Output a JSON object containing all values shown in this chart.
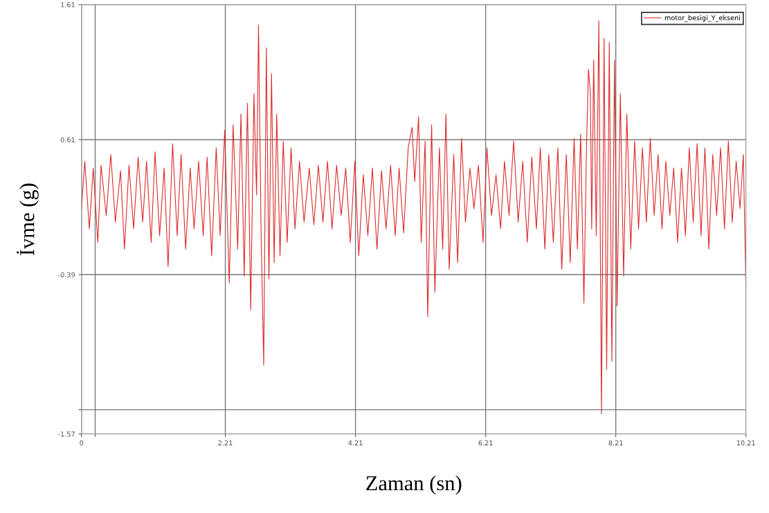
{
  "chart_data": {
    "type": "line",
    "xlabel": "Zaman (sn)",
    "ylabel": "İvme (g)",
    "xlim": [
      0,
      10.21
    ],
    "ylim": [
      -1.57,
      1.61
    ],
    "xticks": [
      0,
      {
        "value": 0.21,
        "label": null
      },
      2.21,
      4.21,
      6.21,
      8.21,
      10.21
    ],
    "yticks": [
      1.61,
      0.61,
      -0.39,
      {
        "value": -1.39,
        "label": null
      },
      -1.57
    ],
    "grid": true,
    "legend": "top right",
    "line_style": "solid",
    "marker": "none",
    "series": [
      {
        "name": "motor_besigi_Y_ekseni",
        "color": "#dd2a2a",
        "x": [
          0.0,
          0.05,
          0.12,
          0.18,
          0.25,
          0.3,
          0.38,
          0.45,
          0.52,
          0.6,
          0.66,
          0.73,
          0.8,
          0.87,
          0.94,
          1.0,
          1.07,
          1.13,
          1.2,
          1.27,
          1.33,
          1.4,
          1.47,
          1.53,
          1.6,
          1.67,
          1.73,
          1.8,
          1.87,
          1.93,
          2.0,
          2.07,
          2.13,
          2.2,
          2.27,
          2.33,
          2.4,
          2.45,
          2.5,
          2.55,
          2.6,
          2.65,
          2.69,
          2.72,
          2.76,
          2.8,
          2.84,
          2.88,
          2.92,
          2.96,
          3.0,
          3.05,
          3.1,
          3.16,
          3.22,
          3.28,
          3.35,
          3.42,
          3.5,
          3.57,
          3.64,
          3.71,
          3.78,
          3.85,
          3.92,
          3.99,
          4.06,
          4.13,
          4.2,
          4.26,
          4.33,
          4.4,
          4.47,
          4.54,
          4.61,
          4.68,
          4.75,
          4.82,
          4.88,
          4.95,
          5.02,
          5.08,
          5.12,
          5.18,
          5.22,
          5.28,
          5.32,
          5.38,
          5.43,
          5.5,
          5.55,
          5.6,
          5.65,
          5.72,
          5.78,
          5.84,
          5.9,
          5.97,
          6.03,
          6.1,
          6.17,
          6.23,
          6.3,
          6.37,
          6.44,
          6.5,
          6.57,
          6.64,
          6.71,
          6.78,
          6.85,
          6.92,
          6.99,
          7.05,
          7.12,
          7.18,
          7.25,
          7.32,
          7.38,
          7.45,
          7.51,
          7.57,
          7.62,
          7.67,
          7.72,
          7.76,
          7.79,
          7.82,
          7.84,
          7.87,
          7.91,
          7.95,
          7.99,
          8.03,
          8.07,
          8.11,
          8.15,
          8.19,
          8.23,
          8.28,
          8.33,
          8.38,
          8.44,
          8.5,
          8.56,
          8.62,
          8.68,
          8.74,
          8.8,
          8.86,
          8.92,
          8.98,
          9.04,
          9.1,
          9.16,
          9.22,
          9.28,
          9.34,
          9.4,
          9.46,
          9.52,
          9.58,
          9.64,
          9.7,
          9.76,
          9.82,
          9.88,
          9.94,
          10.0,
          10.06,
          10.12,
          10.17,
          10.21
        ],
        "values": [
          0.1,
          0.45,
          -0.05,
          0.4,
          -0.15,
          0.42,
          0.05,
          0.5,
          0.0,
          0.38,
          -0.2,
          0.42,
          -0.05,
          0.48,
          0.0,
          0.45,
          -0.15,
          0.52,
          -0.1,
          0.4,
          -0.33,
          0.58,
          -0.1,
          0.5,
          -0.2,
          0.4,
          -0.05,
          0.45,
          -0.1,
          0.48,
          -0.25,
          0.55,
          -0.1,
          0.68,
          -0.45,
          0.72,
          -0.2,
          0.8,
          -0.4,
          0.88,
          -0.65,
          0.95,
          0.2,
          1.46,
          -0.1,
          -1.06,
          1.29,
          -0.42,
          1.1,
          -0.3,
          0.8,
          -0.25,
          0.6,
          -0.15,
          0.55,
          -0.05,
          0.45,
          0.0,
          0.4,
          -0.02,
          0.42,
          0.0,
          0.45,
          -0.05,
          0.42,
          0.05,
          0.4,
          -0.15,
          0.45,
          -0.25,
          0.35,
          -0.1,
          0.4,
          -0.2,
          0.38,
          -0.05,
          0.42,
          -0.1,
          0.4,
          -0.08,
          0.55,
          0.7,
          0.3,
          0.78,
          -0.15,
          0.6,
          -0.7,
          0.72,
          -0.52,
          0.55,
          -0.2,
          0.8,
          -0.35,
          0.5,
          -0.3,
          0.62,
          0.0,
          0.4,
          0.1,
          0.42,
          -0.15,
          0.55,
          0.05,
          0.35,
          -0.05,
          0.45,
          0.05,
          0.6,
          0.0,
          0.45,
          -0.15,
          0.48,
          -0.05,
          0.55,
          -0.2,
          0.5,
          -0.15,
          0.55,
          -0.35,
          0.5,
          -0.3,
          0.62,
          -0.2,
          0.65,
          -0.6,
          0.55,
          1.13,
          0.95,
          -0.05,
          1.2,
          -0.1,
          1.49,
          -1.42,
          1.36,
          -1.09,
          1.33,
          -1.03,
          1.2,
          -0.62,
          0.95,
          -0.4,
          0.8,
          -0.2,
          0.6,
          -0.05,
          0.55,
          0.0,
          0.62,
          0.05,
          0.5,
          -0.05,
          0.45,
          0.05,
          0.4,
          -0.15,
          0.4,
          -0.1,
          0.55,
          0.0,
          0.58,
          -0.1,
          0.55,
          -0.2,
          0.5,
          0.05,
          0.55,
          -0.05,
          0.6,
          0.0,
          0.45,
          0.1,
          0.5,
          -0.5
        ]
      }
    ]
  }
}
